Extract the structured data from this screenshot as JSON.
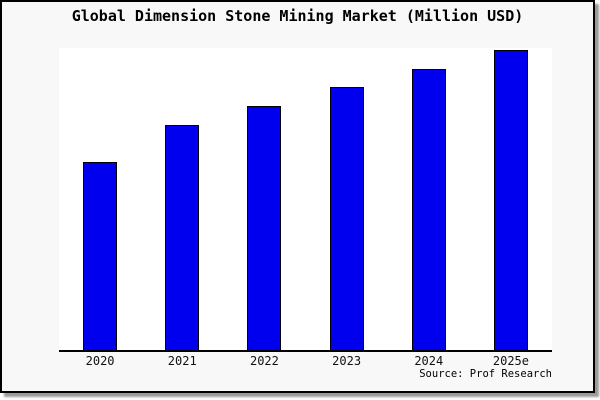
{
  "frame": {
    "background": "#f8f8f8",
    "border_color": "#000000",
    "shadow_color": "#9a9a9a"
  },
  "chart_data": {
    "type": "bar",
    "title": "Global Dimension Stone Mining Market (Million USD)",
    "categories": [
      "2020",
      "2021",
      "2022",
      "2023",
      "2024",
      "2025e"
    ],
    "values": [
      188,
      225,
      244,
      263,
      281,
      300
    ],
    "values_note": "no y-axis or data labels shown in image; values are relative bar heights in screen pixels (baseline y=350, tallest bar 2025e = 300)",
    "source": "Source: Prof Research",
    "xlabel": "",
    "ylabel": "",
    "grid": false,
    "legend": false,
    "y_axis_visible": false,
    "plot_background": "#ffffff",
    "bar_color": "#0000ee",
    "bar_border_color": "#000000"
  }
}
